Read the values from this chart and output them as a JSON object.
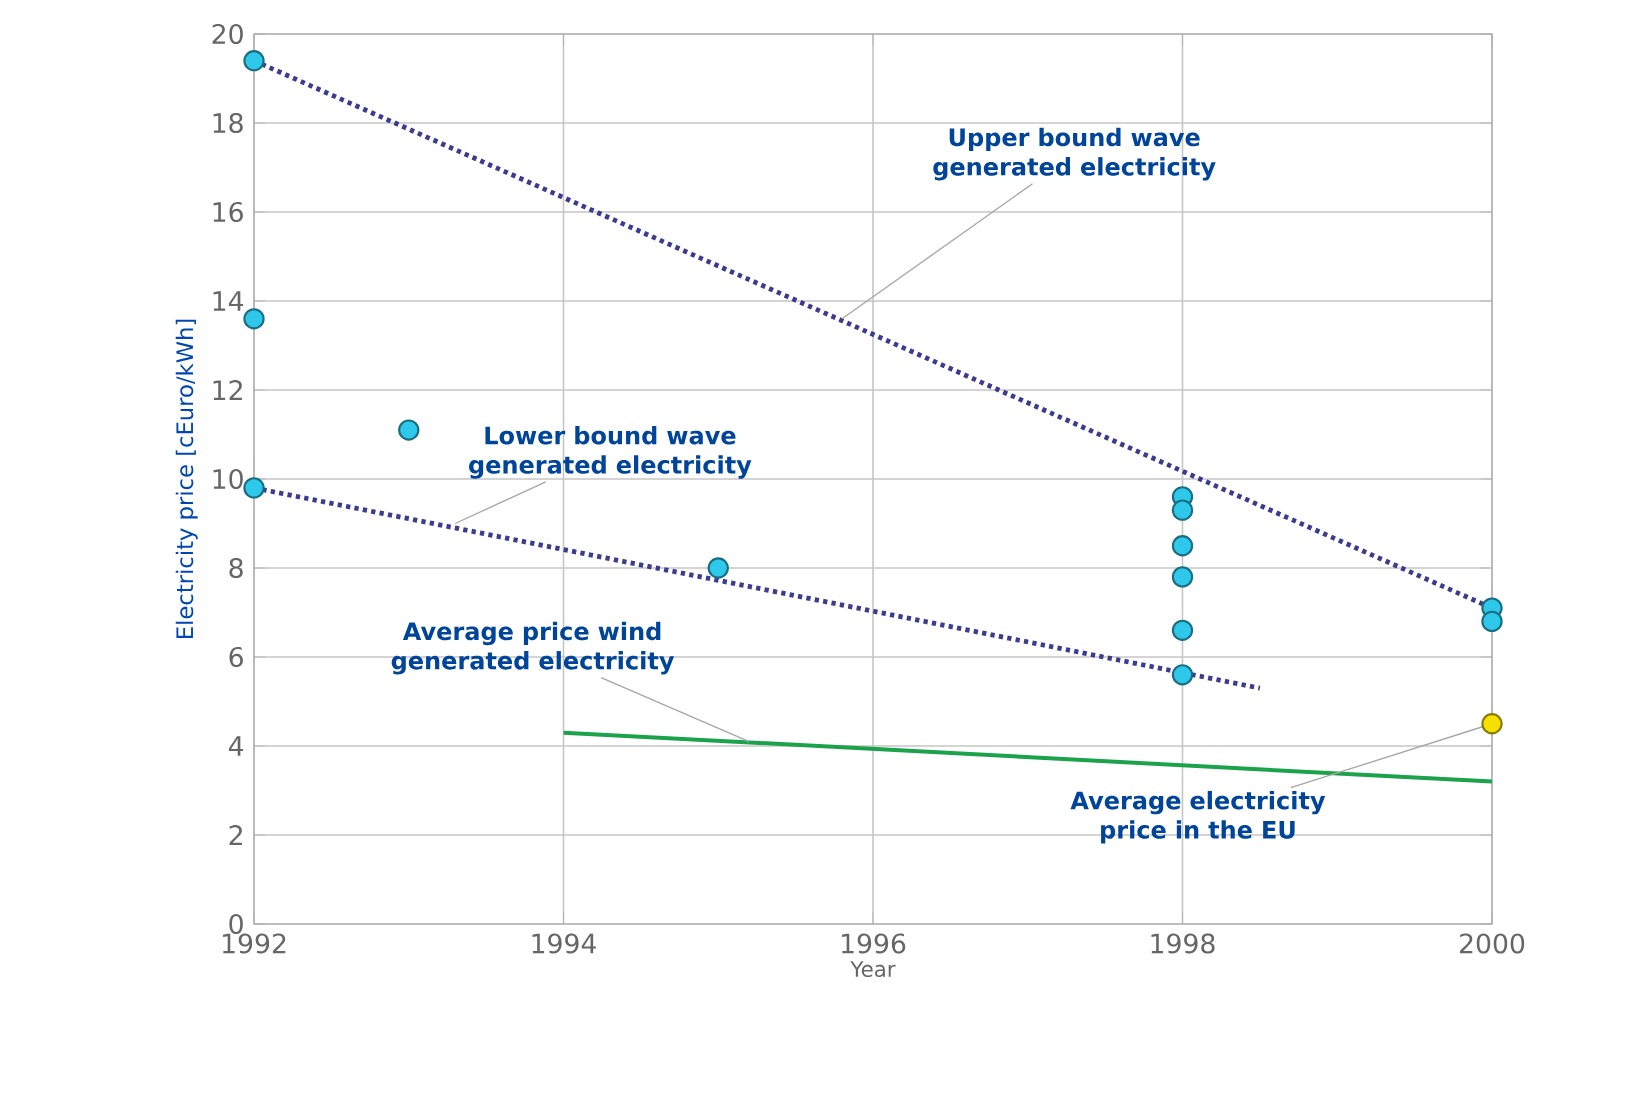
{
  "chart_data": {
    "type": "scatter",
    "xlabel": "Year",
    "ylabel": "Electricity price  [cEuro/kWh]",
    "xlim": [
      1992,
      2000
    ],
    "xticks": [
      1992,
      1994,
      1996,
      1998,
      2000
    ],
    "ylim": [
      0,
      20
    ],
    "yticks": [
      0,
      2,
      4,
      6,
      8,
      10,
      12,
      14,
      16,
      18,
      20
    ],
    "grid": true,
    "series": [
      {
        "type": "line",
        "color": "#3b3b8f",
        "line_style": "dotted",
        "marker": "none",
        "x": [
          1992,
          2000
        ],
        "values": [
          19.4,
          7.1
        ]
      },
      {
        "type": "line",
        "color": "#3b3b8f",
        "line_style": "dotted",
        "marker": "none",
        "x": [
          1992,
          1998.5
        ],
        "values": [
          9.8,
          5.3
        ]
      },
      {
        "type": "line",
        "color": "#1aa34a",
        "line_style": "solid",
        "marker": "none",
        "x": [
          1994,
          2000
        ],
        "values": [
          4.3,
          3.2
        ]
      },
      {
        "type": "scatter",
        "color": "#2ec8ea",
        "marker": "circle",
        "x": [
          1992,
          1992,
          1992,
          1993,
          1995,
          1998,
          1998,
          1998,
          1998,
          1998,
          1998,
          2000,
          2000
        ],
        "values": [
          19.4,
          13.6,
          9.8,
          11.1,
          8.0,
          9.6,
          9.3,
          8.5,
          7.8,
          6.6,
          5.6,
          7.1,
          6.8
        ]
      },
      {
        "type": "scatter",
        "color": "#f5e000",
        "marker": "circle",
        "x": [
          2000
        ],
        "values": [
          4.5
        ]
      }
    ],
    "annotations": [
      {
        "text": "Upper bound wave generated electricity",
        "x": 1995.8,
        "y": 13.6
      },
      {
        "text": "Lower bound wave generated electricity",
        "x": 1993.3,
        "y": 9.0
      },
      {
        "text": "Average price wind generated electricity",
        "x": 1995.2,
        "y": 4.1
      },
      {
        "text": "Average electricity price in the EU",
        "x": 2000,
        "y": 4.5
      }
    ]
  }
}
